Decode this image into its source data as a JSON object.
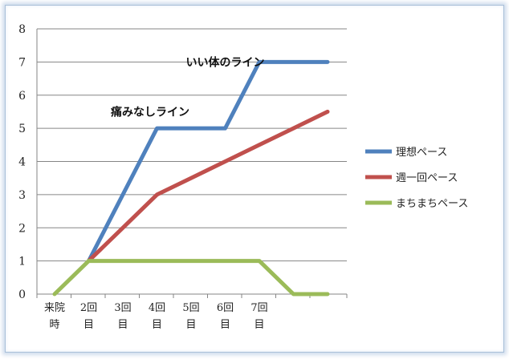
{
  "chart_data": {
    "type": "line",
    "categories": [
      [
        "来院",
        "時"
      ],
      [
        "2回",
        "目"
      ],
      [
        "3回",
        "目"
      ],
      [
        "4回",
        "目"
      ],
      [
        "5回",
        "目"
      ],
      [
        "6回",
        "目"
      ],
      [
        "7回",
        "目"
      ],
      [
        "",
        ""
      ],
      [
        "",
        ""
      ]
    ],
    "series": [
      {
        "name": "理想ペース",
        "color": "#4f81bd",
        "values": [
          null,
          1,
          3,
          5,
          5,
          5,
          7,
          7,
          7
        ]
      },
      {
        "name": "週一回ペース",
        "color": "#c0504d",
        "values": [
          null,
          1,
          2,
          3,
          3.5,
          4,
          4.5,
          5,
          5.5
        ]
      },
      {
        "name": "まちまちペース",
        "color": "#9bbb59",
        "values": [
          0,
          1,
          1,
          1,
          1,
          1,
          1,
          0,
          0
        ]
      }
    ],
    "ylim": [
      0,
      8
    ],
    "yticks": [
      0,
      1,
      2,
      3,
      4,
      5,
      6,
      7,
      8
    ],
    "grid": true,
    "legend": "right",
    "annotations": [
      {
        "text": "痛みなしライン",
        "x": 2.8,
        "y": 5.5
      },
      {
        "text": "いい体のライン",
        "x": 5,
        "y": 7
      }
    ]
  }
}
